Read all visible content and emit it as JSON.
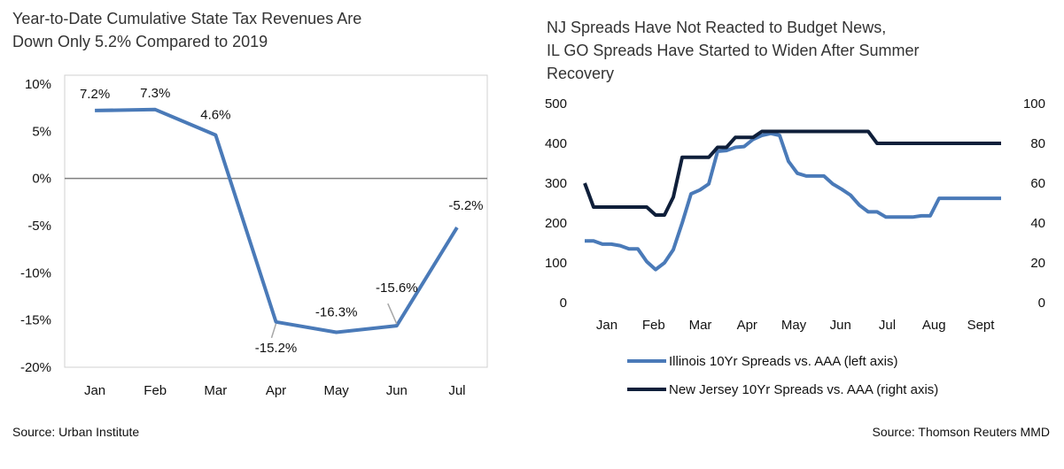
{
  "left": {
    "title_lines": [
      "Year-to-Date Cumulative State Tax Revenues Are",
      "Down Only 5.2% Compared to 2019"
    ],
    "source": "Source:  Urban Institute"
  },
  "right": {
    "title_lines": [
      "NJ Spreads Have Not Reacted to Budget News,",
      "IL GO Spreads Have Started to Widen After Summer",
      "Recovery"
    ],
    "source": "Source:  Thomson Reuters MMD"
  },
  "colors": {
    "illinois": "#4a7ab8",
    "newjersey": "#0f1f3a",
    "zero_line": "#7f7f7f"
  },
  "chart_data": [
    {
      "type": "line",
      "categories": [
        "Jan",
        "Feb",
        "Mar",
        "Apr",
        "May",
        "Jun",
        "Jul"
      ],
      "series": [
        {
          "values": [
            7.2,
            7.3,
            4.6,
            -15.2,
            -16.3,
            -15.6,
            -5.2
          ]
        }
      ],
      "data_labels": [
        "7.2%",
        "7.3%",
        "4.6%",
        "-15.2%",
        "-16.3%",
        "-15.6%",
        "-5.2%"
      ],
      "y_ticks": [
        "10%",
        "5%",
        "0%",
        "-5%",
        "-10%",
        "-15%",
        "-20%"
      ],
      "ylim": [
        -20,
        10
      ],
      "grid": false
    },
    {
      "type": "line",
      "x_ticks": [
        "Jan",
        "Feb",
        "Mar",
        "Apr",
        "May",
        "Jun",
        "Jul",
        "Aug",
        "Sept"
      ],
      "y_left_ticks": [
        "500",
        "400",
        "300",
        "200",
        "100",
        "0"
      ],
      "y_right_ticks": [
        "100",
        "80",
        "60",
        "40",
        "20",
        "0"
      ],
      "ylim_left": [
        0,
        500
      ],
      "ylim_right": [
        0,
        100
      ],
      "legend_position": "bottom",
      "grid": false,
      "series": [
        {
          "name": "Illinois 10Yr Spreads vs. AAA (left axis)",
          "axis": "left",
          "x": [
            0,
            0.2,
            0.4,
            0.6,
            0.8,
            1.0,
            1.2,
            1.4,
            1.6,
            1.8,
            2.0,
            2.2,
            2.4,
            2.6,
            2.8,
            3.0,
            3.2,
            3.4,
            3.6,
            3.8,
            4.0,
            4.2,
            4.4,
            4.6,
            4.8,
            5.0,
            5.2,
            5.4,
            5.6,
            5.8,
            6.0,
            6.2,
            6.4,
            6.6,
            6.8,
            7.0,
            7.2,
            7.4,
            7.6,
            7.8,
            8.0,
            8.2,
            8.4,
            8.6,
            8.8,
            9.0,
            9.2,
            9.4
          ],
          "values": [
            155,
            155,
            147,
            147,
            143,
            135,
            135,
            103,
            83,
            100,
            133,
            200,
            273,
            283,
            298,
            380,
            382,
            390,
            392,
            410,
            420,
            425,
            420,
            355,
            325,
            318,
            318,
            318,
            298,
            285,
            270,
            245,
            228,
            228,
            215,
            215,
            215,
            215,
            218,
            218,
            262,
            262,
            262,
            262,
            262,
            262,
            262,
            262
          ]
        },
        {
          "name": "New Jersey 10Yr Spreads vs. AAA (right axis)",
          "axis": "right",
          "x": [
            0,
            0.2,
            0.4,
            0.6,
            0.8,
            1.0,
            1.2,
            1.4,
            1.6,
            1.8,
            2.0,
            2.2,
            2.4,
            2.6,
            2.8,
            3.0,
            3.2,
            3.4,
            3.6,
            3.8,
            4.0,
            4.2,
            4.4,
            4.6,
            4.8,
            5.0,
            5.2,
            5.4,
            5.6,
            5.8,
            6.0,
            6.2,
            6.4,
            6.6,
            6.8,
            7.0,
            7.2,
            7.4,
            7.6,
            7.8,
            8.0,
            8.2,
            8.4,
            8.6,
            8.8,
            9.0,
            9.2,
            9.4
          ],
          "values": [
            60,
            48,
            48,
            48,
            48,
            48,
            48,
            48,
            44,
            44,
            53,
            73,
            73,
            73,
            73,
            78,
            78,
            83,
            83,
            83,
            86,
            86,
            86,
            86,
            86,
            86,
            86,
            86,
            86,
            86,
            86,
            86,
            86,
            80,
            80,
            80,
            80,
            80,
            80,
            80,
            80,
            80,
            80,
            80,
            80,
            80,
            80,
            80
          ]
        }
      ]
    }
  ]
}
